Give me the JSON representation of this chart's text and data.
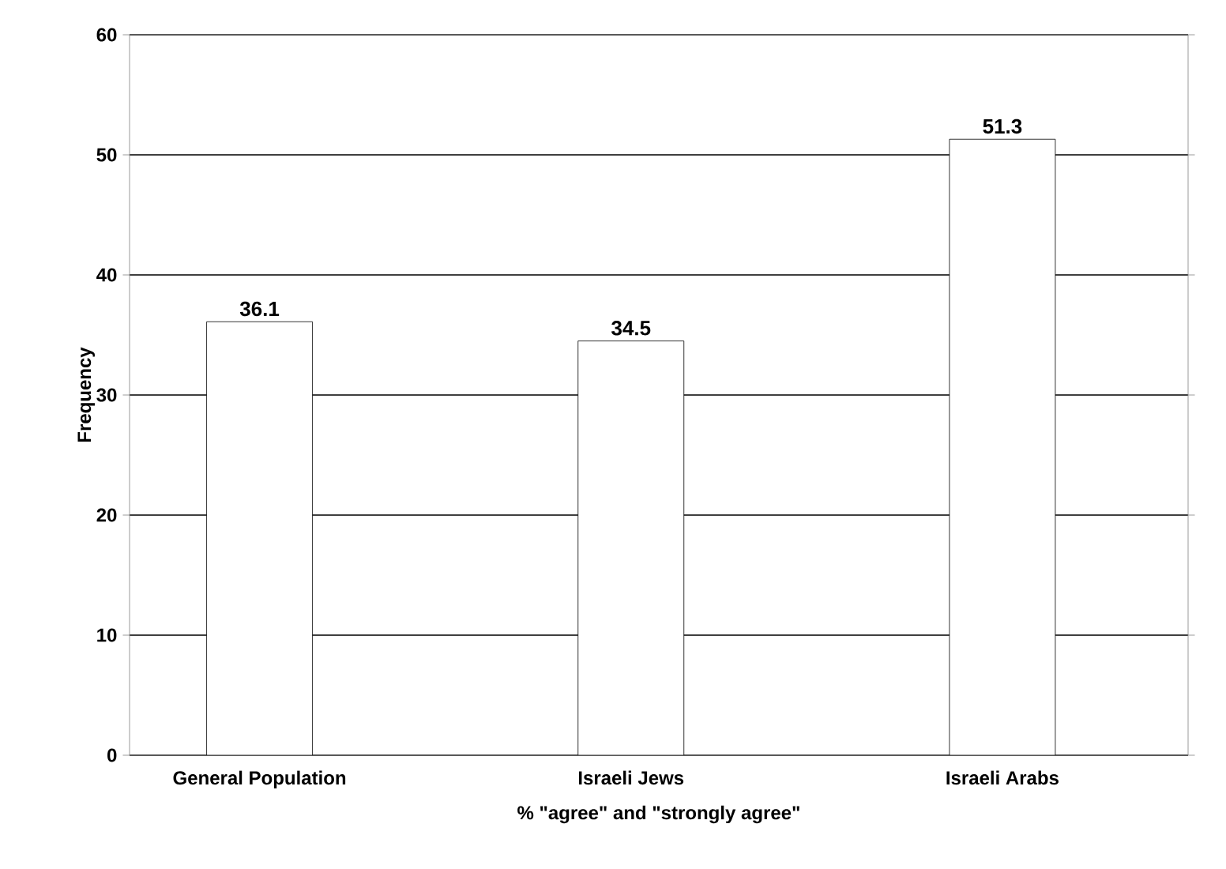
{
  "chart_data": {
    "type": "bar",
    "xlabel": "% \"agree\" and  \"strongly agree\"",
    "ylabel": "Frequency",
    "categories": [
      "General Population",
      "Israeli Jews",
      "Israeli Arabs"
    ],
    "values": [
      36.1,
      34.5,
      51.3
    ],
    "color": "#ffffff",
    "ylim": [
      0,
      60
    ],
    "yticks": [
      0,
      10,
      20,
      30,
      40,
      50,
      60
    ],
    "grid": "y",
    "data_labels": true
  }
}
